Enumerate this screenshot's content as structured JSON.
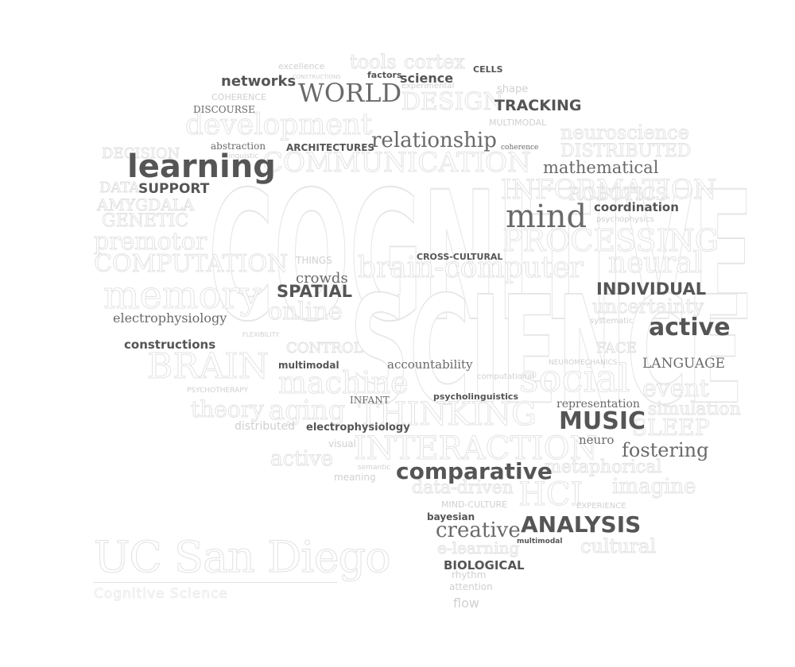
{
  "words": [
    {
      "text": "COGNITIVE",
      "style": "ghostsans",
      "size": 112
    },
    {
      "text": "SCIENCE",
      "style": "ghostsans",
      "size": 104
    },
    {
      "text": "COMMUNICATION",
      "style": "ghost",
      "size": 34
    },
    {
      "text": "INFORMATION",
      "style": "ghost",
      "size": 34
    },
    {
      "text": "PROCESSING",
      "style": "ghost",
      "size": 38
    },
    {
      "text": "COMPUTATION",
      "style": "ghost",
      "size": 30
    },
    {
      "text": "memory",
      "style": "ghost",
      "size": 48
    },
    {
      "text": "BRAIN",
      "style": "ghost",
      "size": 44
    },
    {
      "text": "brain-computer",
      "style": "ghost",
      "size": 36
    },
    {
      "text": "neural",
      "style": "ghost",
      "size": 36
    },
    {
      "text": "social",
      "style": "ghost",
      "size": 48
    },
    {
      "text": "THINKING",
      "style": "ghost",
      "size": 40
    },
    {
      "text": "INTERACTION",
      "style": "ghost",
      "size": 40
    },
    {
      "text": "development",
      "style": "ghost",
      "size": 36
    },
    {
      "text": "DESIGN",
      "style": "ghost",
      "size": 30
    },
    {
      "text": "cortex",
      "style": "ghost",
      "size": 24
    },
    {
      "text": "tools",
      "style": "ghost",
      "size": 24
    },
    {
      "text": "premotor",
      "style": "ghost",
      "size": 30
    },
    {
      "text": "AMYGDALA",
      "style": "ghost",
      "size": 20
    },
    {
      "text": "GENETIC",
      "style": "ghost",
      "size": 22
    },
    {
      "text": "DATA",
      "style": "ghost",
      "size": 18
    },
    {
      "text": "DECISION",
      "style": "ghost",
      "size": 18
    },
    {
      "text": "machine",
      "style": "ghost",
      "size": 38
    },
    {
      "text": "online",
      "style": "ghost",
      "size": 30
    },
    {
      "text": "aging",
      "style": "ghost",
      "size": 34
    },
    {
      "text": "theory",
      "style": "ghost",
      "size": 28
    },
    {
      "text": "active",
      "style": "ghost",
      "size": 26
    },
    {
      "text": "HCI",
      "style": "ghost",
      "size": 40
    },
    {
      "text": "SLEEP",
      "style": "ghost",
      "size": 28
    },
    {
      "text": "event",
      "style": "ghost",
      "size": 30
    },
    {
      "text": "simulation",
      "style": "ghost",
      "size": 22
    },
    {
      "text": "uncertainty",
      "style": "ghost",
      "size": 24
    },
    {
      "text": "imagine",
      "style": "ghost",
      "size": 26
    },
    {
      "text": "cultural",
      "style": "ghost",
      "size": 24
    },
    {
      "text": "metaphorical",
      "style": "ghost",
      "size": 22
    },
    {
      "text": "data-driven",
      "style": "ghost",
      "size": 22
    },
    {
      "text": "e-learning",
      "style": "ghost",
      "size": 20
    },
    {
      "text": "neuroscience",
      "style": "ghost",
      "size": 24
    },
    {
      "text": "DISTRIBUTED",
      "style": "ghost",
      "size": 22
    },
    {
      "text": "ROBOTICS",
      "style": "ghost",
      "size": 22
    },
    {
      "text": "FACE",
      "style": "ghost",
      "size": 18
    },
    {
      "text": "CONTROL",
      "style": "ghost",
      "size": 18
    },
    {
      "text": "learning",
      "style": "dark",
      "size": 40
    },
    {
      "text": "SUPPORT",
      "style": "dark",
      "size": 17
    },
    {
      "text": "networks",
      "style": "dark",
      "size": 18
    },
    {
      "text": "science",
      "style": "dark",
      "size": 16
    },
    {
      "text": "factors",
      "style": "dark",
      "size": 11
    },
    {
      "text": "CELLS",
      "style": "dark",
      "size": 11
    },
    {
      "text": "TRACKING",
      "style": "dark",
      "size": 19
    },
    {
      "text": "ARCHITECTURES",
      "style": "dark",
      "size": 12
    },
    {
      "text": "coordination",
      "style": "dark",
      "size": 15
    },
    {
      "text": "CROSS-CULTURAL",
      "style": "dark",
      "size": 11
    },
    {
      "text": "SPATIAL",
      "style": "dark",
      "size": 21
    },
    {
      "text": "INDIVIDUAL",
      "style": "dark",
      "size": 21
    },
    {
      "text": "active",
      "style": "dark",
      "size": 30
    },
    {
      "text": "constructions",
      "style": "dark",
      "size": 15
    },
    {
      "text": "multimodal",
      "style": "dark",
      "size": 12
    },
    {
      "text": "psycholinguistics",
      "style": "dark",
      "size": 11
    },
    {
      "text": "electrophysiology",
      "style": "dark",
      "size": 13
    },
    {
      "text": "MUSIC",
      "style": "dark",
      "size": 30
    },
    {
      "text": "comparative",
      "style": "dark",
      "size": 28
    },
    {
      "text": "bayesian",
      "style": "dark",
      "size": 12
    },
    {
      "text": "ANALYSIS",
      "style": "dark",
      "size": 28
    },
    {
      "text": "multimodal",
      "style": "dark",
      "size": 9
    },
    {
      "text": "BIOLOGICAL",
      "style": "dark",
      "size": 15
    },
    {
      "text": "WORLD",
      "style": "mid",
      "size": 32
    },
    {
      "text": "DISCOURSE",
      "style": "mid",
      "size": 12
    },
    {
      "text": "abstraction",
      "style": "mid",
      "size": 12
    },
    {
      "text": "relationship",
      "style": "mid",
      "size": 26
    },
    {
      "text": "coherence",
      "style": "mid",
      "size": 9
    },
    {
      "text": "mathematical",
      "style": "mid",
      "size": 21
    },
    {
      "text": "mind",
      "style": "mid",
      "size": 40
    },
    {
      "text": "crowds",
      "style": "mid",
      "size": 18
    },
    {
      "text": "electrophysiology",
      "style": "mid",
      "size": 16
    },
    {
      "text": "accountability",
      "style": "mid",
      "size": 15
    },
    {
      "text": "LANGUAGE",
      "style": "mid",
      "size": 17
    },
    {
      "text": "INFANT",
      "style": "mid",
      "size": 12
    },
    {
      "text": "representation",
      "style": "mid",
      "size": 14
    },
    {
      "text": "neuro",
      "style": "mid",
      "size": 15
    },
    {
      "text": "fostering",
      "style": "mid",
      "size": 24
    },
    {
      "text": "creative",
      "style": "mid",
      "size": 26
    },
    {
      "text": "excellence",
      "style": "tiny",
      "size": 11
    },
    {
      "text": "CONSTRUCTIONS",
      "style": "tiny",
      "size": 7
    },
    {
      "text": "COHERENCE",
      "style": "tiny",
      "size": 11
    },
    {
      "text": "experimental",
      "style": "tiny",
      "size": 10
    },
    {
      "text": "shape",
      "style": "tiny",
      "size": 13
    },
    {
      "text": "MULTIMODAL",
      "style": "tiny",
      "size": 11
    },
    {
      "text": "linguistic",
      "style": "tiny",
      "size": 9
    },
    {
      "text": "THINGS",
      "style": "tiny",
      "size": 12
    },
    {
      "text": "psychophysics",
      "style": "tiny",
      "size": 10
    },
    {
      "text": "systematic",
      "style": "tiny",
      "size": 10
    },
    {
      "text": "FLEXIBILITY",
      "style": "tiny",
      "size": 8
    },
    {
      "text": "PSYCHOTHERAPY",
      "style": "tiny",
      "size": 9
    },
    {
      "text": "computational",
      "style": "tiny",
      "size": 10
    },
    {
      "text": "NEUROMECHANICS",
      "style": "tiny",
      "size": 9
    },
    {
      "text": "distributed",
      "style": "tiny",
      "size": 14
    },
    {
      "text": "visual",
      "style": "tiny",
      "size": 12
    },
    {
      "text": "meaning",
      "style": "tiny",
      "size": 12
    },
    {
      "text": "semantic",
      "style": "tiny",
      "size": 9
    },
    {
      "text": "EXPERIENCE",
      "style": "tiny",
      "size": 10
    },
    {
      "text": "MIND-CULTURE",
      "style": "tiny",
      "size": 11
    },
    {
      "text": "attention",
      "style": "tiny",
      "size": 12
    },
    {
      "text": "rhythm",
      "style": "tiny",
      "size": 12
    },
    {
      "text": "flow",
      "style": "tiny",
      "size": 16
    }
  ],
  "logo": {
    "title": "UC San Diego",
    "subtitle": "Cognitive Science"
  }
}
